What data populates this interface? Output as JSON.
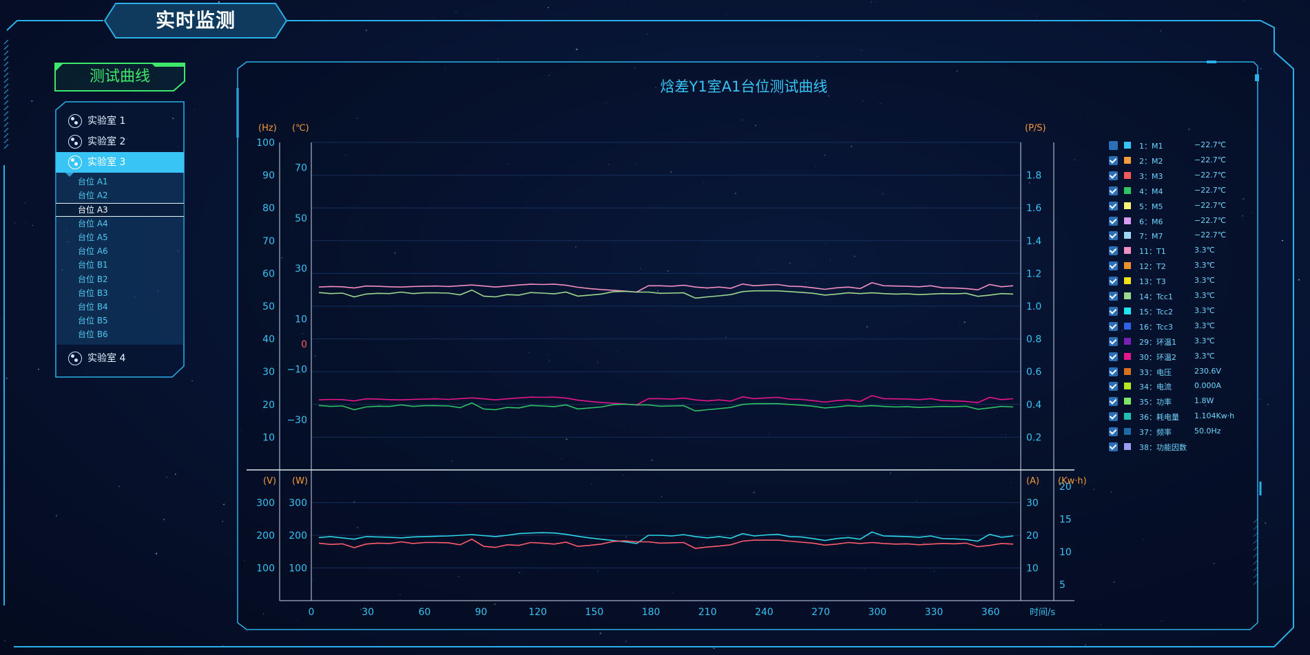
{
  "header": {
    "title": "实时监测"
  },
  "sidebar": {
    "section_title": "测试曲线",
    "labs": [
      {
        "label": "实验室 1",
        "active": false
      },
      {
        "label": "实验室 2",
        "active": false
      },
      {
        "label": "实验室 3",
        "active": true
      },
      {
        "label": "实验室 4",
        "active": false
      }
    ],
    "stations": [
      "台位 A1",
      "台位 A2",
      "台位 A3",
      "台位 A4",
      "台位 A5",
      "台位 A6",
      "台位 B1",
      "台位 B2",
      "台位 B3",
      "台位 B4",
      "台位 B5",
      "台位 B6"
    ],
    "selected_station": "台位 A3"
  },
  "colors": {
    "accent": "#38c4f4",
    "axis_unit": "#f39c3c",
    "title_green": "#3ee86b",
    "zero_label": "#ff5a5a"
  },
  "chart_data": {
    "type": "line",
    "title": "焓差Y1室A1台位测试曲线",
    "x_unit": "时间/s",
    "x_ticks": [
      0,
      30,
      60,
      90,
      120,
      150,
      180,
      210,
      240,
      270,
      300,
      330,
      360
    ],
    "xlim": [
      0,
      376
    ],
    "top_panel": {
      "left_axes": [
        {
          "unit": "(Hz)",
          "ylim": [
            0,
            100
          ],
          "ticks": [
            10,
            20,
            30,
            40,
            50,
            60,
            70,
            80,
            90,
            100
          ]
        },
        {
          "unit": "(℃)",
          "ylim": [
            -50,
            80
          ],
          "ticks": [
            -30,
            -10,
            0,
            10,
            30,
            50,
            70
          ]
        }
      ],
      "right_axis": {
        "unit": "(P/S)",
        "ylim": [
          0,
          2
        ],
        "ticks": [
          0.2,
          0.4,
          0.6,
          0.8,
          1.0,
          1.2,
          1.4,
          1.6,
          1.8
        ]
      },
      "series": [
        {
          "color": "#f48fc3",
          "axis": "℃",
          "values": [
            22.6,
            22.8,
            22.7,
            22.2,
            23.0,
            22.9,
            22.7,
            22.6,
            22.8,
            22.9,
            23.0,
            22.8,
            23.1,
            23.4,
            23.0,
            22.6,
            23.0,
            23.4,
            23.7,
            23.6,
            23.7,
            23.3,
            22.5,
            22.0,
            21.6,
            21.3,
            21.0,
            20.6,
            23.1,
            23.1,
            22.9,
            23.3,
            22.6,
            22.2,
            22.6,
            22.1,
            23.8,
            23.1,
            23.4,
            23.6,
            22.9,
            22.8,
            22.3,
            21.7,
            22.3,
            22.6,
            22.0,
            24.3,
            23.1,
            23.0,
            22.9,
            22.7,
            23.1,
            22.3,
            22.2,
            22.0,
            21.5,
            23.6,
            22.7,
            23.1
          ]
        },
        {
          "color": "#9ed88e",
          "axis": "℃",
          "values": [
            20.4,
            20.0,
            20.2,
            18.7,
            19.8,
            20.1,
            20.0,
            20.6,
            20.0,
            20.3,
            20.3,
            20.2,
            19.5,
            21.4,
            19.0,
            18.7,
            19.6,
            19.4,
            20.4,
            20.2,
            19.9,
            20.6,
            19.0,
            19.4,
            19.8,
            20.7,
            20.9,
            20.6,
            20.6,
            20.1,
            20.2,
            20.3,
            18.2,
            18.7,
            19.1,
            19.6,
            20.8,
            21.1,
            21.1,
            21.1,
            20.8,
            20.5,
            20.1,
            19.4,
            19.8,
            20.3,
            20.0,
            20.3,
            20.0,
            19.8,
            19.9,
            19.6,
            19.8,
            20.0,
            19.9,
            20.1,
            18.9,
            19.4,
            20.0,
            19.8
          ]
        },
        {
          "color": "#e8168c",
          "axis": "℃",
          "values": [
            -22.2,
            -22.0,
            -22.1,
            -22.6,
            -21.8,
            -21.9,
            -22.1,
            -22.2,
            -22.0,
            -21.9,
            -21.8,
            -22.0,
            -21.7,
            -21.4,
            -21.8,
            -22.2,
            -21.8,
            -21.4,
            -21.1,
            -21.2,
            -21.1,
            -21.5,
            -22.3,
            -22.8,
            -23.2,
            -23.5,
            -23.8,
            -24.2,
            -21.7,
            -21.7,
            -21.9,
            -21.5,
            -22.2,
            -22.6,
            -22.2,
            -22.7,
            -21.0,
            -21.7,
            -21.4,
            -21.2,
            -21.9,
            -22.0,
            -22.5,
            -23.1,
            -22.5,
            -22.2,
            -22.8,
            -20.5,
            -21.7,
            -21.8,
            -21.9,
            -22.1,
            -21.7,
            -22.5,
            -22.6,
            -22.8,
            -23.3,
            -21.2,
            -22.1,
            -21.7
          ]
        },
        {
          "color": "#2fc464",
          "axis": "℃",
          "values": [
            -24.4,
            -24.8,
            -24.6,
            -26.1,
            -25.0,
            -24.7,
            -24.8,
            -24.2,
            -24.8,
            -24.5,
            -24.5,
            -24.6,
            -25.3,
            -23.4,
            -25.8,
            -26.1,
            -25.2,
            -25.4,
            -24.4,
            -24.6,
            -24.9,
            -24.2,
            -25.8,
            -25.4,
            -25.0,
            -24.1,
            -23.9,
            -24.2,
            -24.2,
            -24.7,
            -24.6,
            -24.5,
            -26.6,
            -26.1,
            -25.7,
            -25.2,
            -24.0,
            -23.7,
            -23.7,
            -23.7,
            -24.0,
            -24.3,
            -24.7,
            -25.4,
            -25.0,
            -24.5,
            -24.8,
            -24.5,
            -24.8,
            -25.0,
            -24.9,
            -25.2,
            -25.0,
            -24.8,
            -24.9,
            -24.7,
            -25.9,
            -25.4,
            -24.8,
            -25.0
          ]
        }
      ]
    },
    "bottom_panel": {
      "left_axes": [
        {
          "unit": "(V)",
          "ylim": [
            0,
            400
          ],
          "ticks": [
            100,
            200,
            300
          ]
        },
        {
          "unit": "(W)",
          "ylim": [
            0,
            400
          ],
          "ticks": [
            100,
            200,
            300
          ]
        }
      ],
      "right_axes": [
        {
          "unit": "(A)",
          "ylim": [
            0,
            40
          ],
          "ticks": [
            10,
            20,
            30
          ]
        },
        {
          "unit": "(Kw·h)",
          "ylim": [
            2.5,
            22.5
          ],
          "ticks": [
            5,
            10,
            15,
            20
          ]
        }
      ],
      "series": [
        {
          "color": "#2fd6e6",
          "axis": "V",
          "values": [
            193,
            196,
            192,
            188,
            196,
            195,
            194,
            192,
            195,
            196,
            197,
            198,
            200,
            202,
            199,
            196,
            200,
            205,
            207,
            208,
            207,
            203,
            197,
            192,
            188,
            184,
            180,
            175,
            200,
            200,
            198,
            202,
            196,
            192,
            196,
            191,
            205,
            198,
            201,
            203,
            196,
            195,
            190,
            184,
            190,
            193,
            188,
            210,
            198,
            197,
            196,
            194,
            198,
            190,
            189,
            187,
            182,
            203,
            194,
            198
          ]
        },
        {
          "color": "#ff5c6e",
          "axis": "V",
          "values": [
            176,
            172,
            174,
            162,
            173,
            176,
            175,
            180,
            175,
            178,
            178,
            177,
            171,
            188,
            166,
            163,
            171,
            169,
            178,
            176,
            173,
            179,
            166,
            169,
            173,
            181,
            183,
            180,
            180,
            176,
            177,
            178,
            160,
            164,
            167,
            171,
            182,
            185,
            185,
            185,
            182,
            179,
            176,
            170,
            173,
            178,
            175,
            178,
            175,
            173,
            174,
            171,
            173,
            175,
            174,
            176,
            165,
            169,
            175,
            173
          ]
        }
      ]
    }
  },
  "legend": [
    {
      "name": "1：M1",
      "value": "−22.7℃",
      "color": "#38c4f4",
      "checked": false
    },
    {
      "name": "2：M2",
      "value": "−22.7℃",
      "color": "#f39c3c",
      "checked": true
    },
    {
      "name": "3：M3",
      "value": "−22.7℃",
      "color": "#f25b5b",
      "checked": true
    },
    {
      "name": "4：M4",
      "value": "−22.7℃",
      "color": "#2fc464",
      "checked": true
    },
    {
      "name": "5：M5",
      "value": "−22.7℃",
      "color": "#f9f27a",
      "checked": true
    },
    {
      "name": "6：M6",
      "value": "−22.7℃",
      "color": "#d79bf2",
      "checked": true
    },
    {
      "name": "7：M7",
      "value": "−22.7℃",
      "color": "#9fd4f5",
      "checked": true
    },
    {
      "name": "11：T1",
      "value": "3.3℃",
      "color": "#f48fc3",
      "checked": true
    },
    {
      "name": "12：T2",
      "value": "3.3℃",
      "color": "#f0902e",
      "checked": true
    },
    {
      "name": "13：T3",
      "value": "3.3℃",
      "color": "#f2e21c",
      "checked": true
    },
    {
      "name": "14：Tcc1",
      "value": "3.3℃",
      "color": "#9ed88e",
      "checked": true
    },
    {
      "name": "15：Tcc2",
      "value": "3.3℃",
      "color": "#1fe6f0",
      "checked": true
    },
    {
      "name": "16：Tcc3",
      "value": "3.3℃",
      "color": "#2f62e8",
      "checked": true
    },
    {
      "name": "29：环温1",
      "value": "3.3℃",
      "color": "#7a1fb4",
      "checked": true
    },
    {
      "name": "30：环温2",
      "value": "3.3℃",
      "color": "#e8168c",
      "checked": true
    },
    {
      "name": "33：电压",
      "value": "230.6V",
      "color": "#d8701e",
      "checked": true
    },
    {
      "name": "34：电流",
      "value": "0.000A",
      "color": "#b6e61f",
      "checked": true
    },
    {
      "name": "35：功率",
      "value": "1.8W",
      "color": "#7ce86a",
      "checked": true
    },
    {
      "name": "36：耗电量",
      "value": "1.104Kw·h",
      "color": "#1fc0b4",
      "checked": true
    },
    {
      "name": "37：频率",
      "value": "50.0Hz",
      "color": "#1c6aa8",
      "checked": true
    },
    {
      "name": "38：功能因数",
      "value": "",
      "color": "#9a9cf2",
      "checked": true
    }
  ]
}
